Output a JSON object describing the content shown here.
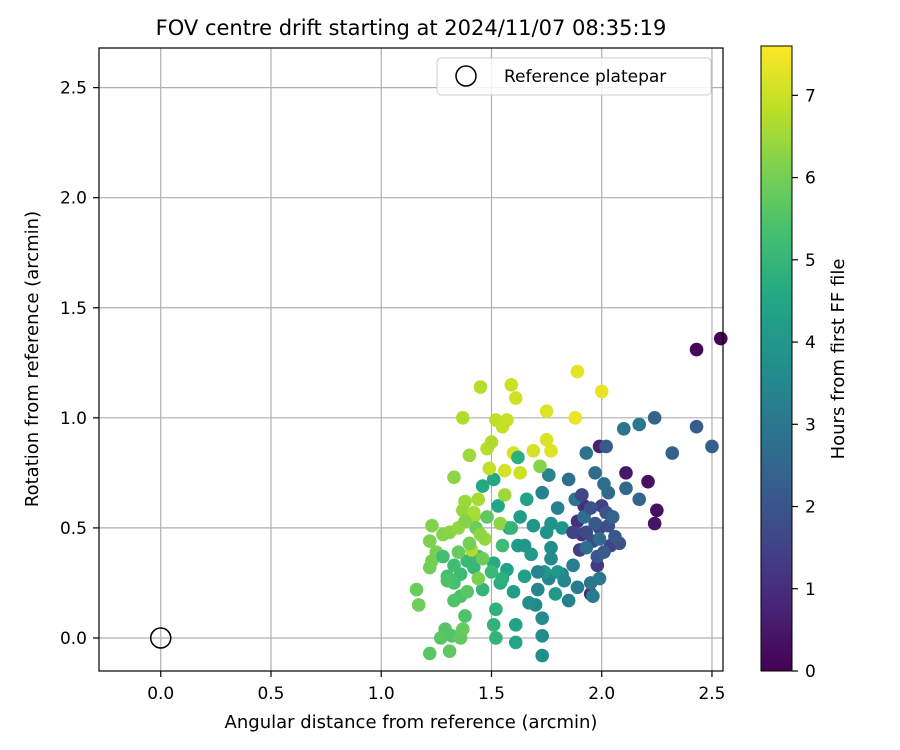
{
  "chart_data": {
    "type": "scatter",
    "title": "FOV centre drift starting at 2024/11/07 08:35:19",
    "xlabel": "Angular distance from reference (arcmin)",
    "ylabel": "Rotation from reference (arcmin)",
    "xlim": [
      -0.28,
      2.55
    ],
    "ylim": [
      -0.15,
      2.68
    ],
    "x_ticks": [
      "0.0",
      "0.5",
      "1.0",
      "1.5",
      "2.0",
      "2.5"
    ],
    "x_tick_values": [
      0.0,
      0.5,
      1.0,
      1.5,
      2.0,
      2.5
    ],
    "y_ticks": [
      "0.0",
      "0.5",
      "1.0",
      "1.5",
      "2.0",
      "2.5"
    ],
    "y_tick_values": [
      0.0,
      0.5,
      1.0,
      1.5,
      2.0,
      2.5
    ],
    "grid": true,
    "legend": {
      "placement": "top-right",
      "entries": [
        "Reference platepar"
      ]
    },
    "reference_point": {
      "x": 0.0,
      "y": 0.0,
      "marker": "open-circle"
    },
    "colorbar": {
      "label": "Hours from first FF file",
      "ticks": [
        "0",
        "1",
        "2",
        "3",
        "4",
        "5",
        "6",
        "7"
      ],
      "tick_values": [
        0,
        1,
        2,
        3,
        4,
        5,
        6,
        7
      ],
      "range": [
        0,
        7.6
      ],
      "colormap": "viridis"
    },
    "points": [
      [
        2.54,
        1.36,
        0.05
      ],
      [
        2.43,
        1.31,
        0.15
      ],
      [
        2.25,
        0.58,
        0.3
      ],
      [
        2.21,
        0.71,
        0.35
      ],
      [
        2.24,
        0.52,
        0.4
      ],
      [
        2.11,
        0.75,
        0.5
      ],
      [
        1.99,
        0.87,
        0.7
      ],
      [
        1.95,
        0.2,
        0.9
      ],
      [
        1.92,
        0.6,
        1.0
      ],
      [
        1.89,
        0.53,
        1.1
      ],
      [
        1.91,
        0.47,
        1.2
      ],
      [
        1.98,
        0.33,
        1.3
      ],
      [
        1.9,
        0.4,
        1.35
      ],
      [
        2.0,
        0.6,
        1.4
      ],
      [
        2.04,
        0.42,
        1.5
      ],
      [
        1.99,
        0.5,
        1.6
      ],
      [
        1.93,
        0.48,
        1.7
      ],
      [
        1.96,
        0.44,
        1.75
      ],
      [
        2.03,
        0.51,
        1.8
      ],
      [
        2.08,
        0.43,
        1.85
      ],
      [
        2.02,
        0.57,
        1.9
      ],
      [
        1.98,
        0.37,
        2.0
      ],
      [
        2.06,
        0.46,
        2.05
      ],
      [
        1.97,
        0.52,
        2.1
      ],
      [
        2.02,
        0.87,
        2.15
      ],
      [
        2.43,
        0.96,
        2.2
      ],
      [
        2.5,
        0.87,
        2.3
      ],
      [
        2.32,
        0.84,
        2.4
      ],
      [
        2.24,
        1.0,
        2.45
      ],
      [
        2.17,
        0.63,
        2.5
      ],
      [
        2.11,
        0.68,
        2.55
      ],
      [
        2.03,
        0.66,
        2.6
      ],
      [
        1.97,
        0.75,
        2.7
      ],
      [
        1.92,
        0.55,
        2.75
      ],
      [
        1.85,
        0.72,
        2.8
      ],
      [
        1.88,
        0.63,
        2.85
      ],
      [
        1.93,
        0.84,
        2.9
      ],
      [
        2.1,
        0.95,
        2.95
      ],
      [
        2.17,
        0.97,
        3.0
      ],
      [
        1.99,
        0.27,
        3.05
      ],
      [
        1.96,
        0.19,
        3.1
      ],
      [
        1.89,
        0.23,
        3.15
      ],
      [
        1.87,
        0.33,
        3.2
      ],
      [
        1.82,
        0.29,
        3.25
      ],
      [
        1.8,
        0.59,
        3.3
      ],
      [
        1.76,
        0.74,
        3.35
      ],
      [
        1.73,
        0.66,
        3.4
      ],
      [
        1.76,
        0.27,
        3.45
      ],
      [
        1.71,
        0.22,
        3.5
      ],
      [
        1.7,
        0.15,
        3.55
      ],
      [
        1.73,
        0.09,
        3.6
      ],
      [
        1.73,
        0.01,
        3.65
      ],
      [
        1.73,
        -0.08,
        3.7
      ],
      [
        1.67,
        0.16,
        3.75
      ],
      [
        1.75,
        0.48,
        3.8
      ],
      [
        1.77,
        0.52,
        3.85
      ],
      [
        1.82,
        0.5,
        3.9
      ],
      [
        1.8,
        0.3,
        3.95
      ],
      [
        1.74,
        0.3,
        4.0
      ],
      [
        1.79,
        0.2,
        4.05
      ],
      [
        1.68,
        0.38,
        4.1
      ],
      [
        1.62,
        0.42,
        4.15
      ],
      [
        1.63,
        0.55,
        4.2
      ],
      [
        1.58,
        0.5,
        4.25
      ],
      [
        1.65,
        0.28,
        4.3
      ],
      [
        1.57,
        0.31,
        4.35
      ],
      [
        1.61,
        0.06,
        4.4
      ],
      [
        1.61,
        -0.02,
        4.45
      ],
      [
        1.53,
        0.6,
        4.5
      ],
      [
        1.51,
        0.72,
        4.55
      ],
      [
        1.46,
        0.69,
        4.6
      ],
      [
        1.51,
        0.34,
        4.65
      ],
      [
        1.54,
        0.25,
        4.7
      ],
      [
        1.55,
        0.27,
        4.8
      ],
      [
        1.52,
        0.13,
        4.85
      ],
      [
        1.51,
        0.06,
        4.9
      ],
      [
        1.52,
        0.0,
        4.95
      ],
      [
        1.46,
        0.22,
        5.0
      ],
      [
        1.42,
        0.32,
        5.05
      ],
      [
        1.39,
        0.35,
        5.1
      ],
      [
        1.44,
        0.37,
        5.15
      ],
      [
        1.36,
        0.29,
        5.2
      ],
      [
        1.33,
        0.33,
        5.25
      ],
      [
        1.3,
        0.28,
        5.3
      ],
      [
        1.33,
        0.25,
        5.35
      ],
      [
        1.36,
        0.19,
        5.4
      ],
      [
        1.38,
        0.1,
        5.45
      ],
      [
        1.32,
        0.01,
        5.5
      ],
      [
        1.29,
        0.04,
        5.55
      ],
      [
        1.27,
        0.0,
        5.6
      ],
      [
        1.22,
        -0.07,
        5.65
      ],
      [
        1.31,
        -0.06,
        5.7
      ],
      [
        1.36,
        0.0,
        5.75
      ],
      [
        1.37,
        0.04,
        5.8
      ],
      [
        1.16,
        0.22,
        5.85
      ],
      [
        1.17,
        0.15,
        5.9
      ],
      [
        1.22,
        0.32,
        5.95
      ],
      [
        1.23,
        0.35,
        6.0
      ],
      [
        1.25,
        0.39,
        6.05
      ],
      [
        1.22,
        0.44,
        6.1
      ],
      [
        1.23,
        0.51,
        6.15
      ],
      [
        1.28,
        0.47,
        6.2
      ],
      [
        1.31,
        0.48,
        6.25
      ],
      [
        1.33,
        0.73,
        6.3
      ],
      [
        1.35,
        0.5,
        6.35
      ],
      [
        1.37,
        0.58,
        6.4
      ],
      [
        1.38,
        0.62,
        6.45
      ],
      [
        1.4,
        0.83,
        6.5
      ],
      [
        1.42,
        0.55,
        6.55
      ],
      [
        1.44,
        0.63,
        6.6
      ],
      [
        1.41,
        0.4,
        6.65
      ],
      [
        1.37,
        1.0,
        6.7
      ],
      [
        1.45,
        1.14,
        6.75
      ],
      [
        1.48,
        0.86,
        6.8
      ],
      [
        1.52,
        0.99,
        6.85
      ],
      [
        1.55,
        0.96,
        6.9
      ],
      [
        1.57,
        0.99,
        6.95
      ],
      [
        1.59,
        1.15,
        7.0
      ],
      [
        1.61,
        1.09,
        7.05
      ],
      [
        1.56,
        0.76,
        7.1
      ],
      [
        1.6,
        0.84,
        7.15
      ],
      [
        1.75,
        1.03,
        7.2
      ],
      [
        1.77,
        0.85,
        7.25
      ],
      [
        1.89,
        1.21,
        7.3
      ],
      [
        2.0,
        1.12,
        7.35
      ],
      [
        1.88,
        1.0,
        7.4
      ],
      [
        1.42,
        0.57,
        6.6
      ],
      [
        1.47,
        0.45,
        6.4
      ],
      [
        1.49,
        0.77,
        6.9
      ],
      [
        1.5,
        0.89,
        6.7
      ],
      [
        1.56,
        0.65,
        6.5
      ],
      [
        1.54,
        0.52,
        6.3
      ],
      [
        1.44,
        0.27,
        6.1
      ],
      [
        1.46,
        0.36,
        5.9
      ],
      [
        1.35,
        0.39,
        5.8
      ],
      [
        1.39,
        0.21,
        5.6
      ],
      [
        1.33,
        0.17,
        5.5
      ],
      [
        1.3,
        0.26,
        5.4
      ],
      [
        1.28,
        0.37,
        5.3
      ],
      [
        1.6,
        0.21,
        4.2
      ],
      [
        1.65,
        0.42,
        4.0
      ],
      [
        1.69,
        0.51,
        3.9
      ],
      [
        1.77,
        0.41,
        3.7
      ],
      [
        1.83,
        0.26,
        3.5
      ],
      [
        1.85,
        0.17,
        3.3
      ],
      [
        1.95,
        0.25,
        3.0
      ],
      [
        1.99,
        0.45,
        2.6
      ],
      [
        2.05,
        0.55,
        2.4
      ],
      [
        2.01,
        0.39,
        2.2
      ],
      [
        1.95,
        0.59,
        1.9
      ],
      [
        1.91,
        0.65,
        1.6
      ],
      [
        1.87,
        0.48,
        1.5
      ],
      [
        2.01,
        0.7,
        2.8
      ],
      [
        1.93,
        0.41,
        2.7
      ],
      [
        1.72,
        0.78,
        6.2
      ],
      [
        1.77,
        0.36,
        3.6
      ],
      [
        1.71,
        0.3,
        3.4
      ],
      [
        1.66,
        0.63,
        4.4
      ],
      [
        1.62,
        0.82,
        4.8
      ],
      [
        1.59,
        0.5,
        5.0
      ],
      [
        1.55,
        0.42,
        5.2
      ],
      [
        1.5,
        0.3,
        5.1
      ],
      [
        1.48,
        0.55,
        5.7
      ],
      [
        1.43,
        0.5,
        5.9
      ],
      [
        1.4,
        0.43,
        6.0
      ],
      [
        1.38,
        0.53,
        6.2
      ],
      [
        1.45,
        0.47,
        6.3
      ],
      [
        1.63,
        0.75,
        7.0
      ],
      [
        1.69,
        0.85,
        7.1
      ],
      [
        1.75,
        0.9,
        7.2
      ]
    ]
  }
}
